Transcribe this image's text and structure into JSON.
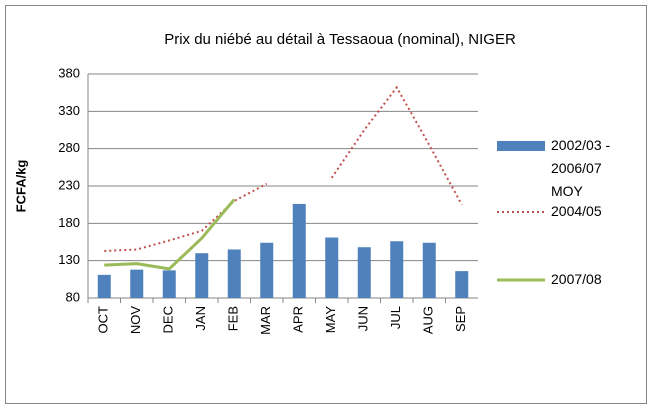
{
  "chart_data": {
    "type": "bar",
    "title": "Prix du niébé au détail à Tessaoua (nominal), NIGER",
    "y_label": "FCFA/kg",
    "categories": [
      "OCT",
      "NOV",
      "DEC",
      "JAN",
      "FEB",
      "MAR",
      "APR",
      "MAY",
      "JUN",
      "JUL",
      "AUG",
      "SEP"
    ],
    "ylim": [
      80,
      380
    ],
    "yticks": [
      80,
      130,
      180,
      230,
      280,
      330,
      380
    ],
    "grid": true,
    "series": [
      {
        "name": "2002/03 - 2006/07 MOY",
        "type": "bar",
        "color": "#4f81bd",
        "values": [
          111,
          118,
          117,
          140,
          145,
          154,
          206,
          161,
          148,
          156,
          154,
          116
        ]
      },
      {
        "name": "2004/05",
        "type": "line",
        "style": "dotted",
        "color": "#c0504d",
        "values": [
          143,
          145,
          157,
          170,
          210,
          233,
          null,
          241,
          305,
          362,
          285,
          205
        ]
      },
      {
        "name": "2007/08",
        "type": "line",
        "style": "solid",
        "color": "#9bbb59",
        "values": [
          124,
          126,
          119,
          160,
          212,
          null,
          null,
          null,
          null,
          null,
          null,
          null
        ]
      }
    ]
  }
}
